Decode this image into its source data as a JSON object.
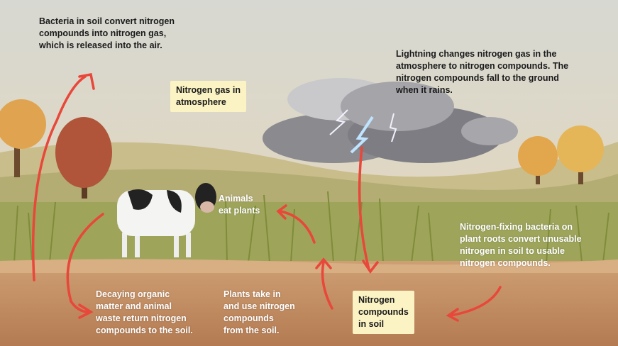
{
  "annotations": [
    {
      "lines": [
        "Bacteria in soil convert nitrogen",
        "compounds into nitrogen gas,",
        "which is released into the air."
      ]
    },
    {
      "lines": [
        "Nitrogen gas in",
        "atmosphere"
      ]
    },
    {
      "lines": [
        "Lightning changes nitrogen gas in the",
        "atmosphere to nitrogen compounds. The",
        "nitrogen compounds fall to the ground",
        "when it rains."
      ]
    },
    {
      "lines": [
        "Animals",
        "eat plants"
      ]
    },
    {
      "lines": [
        "Nitrogen-fixing bacteria on",
        "plant roots convert unusable",
        "nitrogen in soil to usable",
        "nitrogen compounds."
      ]
    },
    {
      "lines": [
        "Decaying organic",
        "matter and animal",
        "waste return nitrogen",
        "compounds to the soil."
      ]
    },
    {
      "lines": [
        "Plants take in",
        "and use nitrogen",
        "compounds",
        "from the soil."
      ]
    },
    {
      "lines": [
        "Nitrogen",
        "compounds",
        "in soil"
      ]
    }
  ]
}
